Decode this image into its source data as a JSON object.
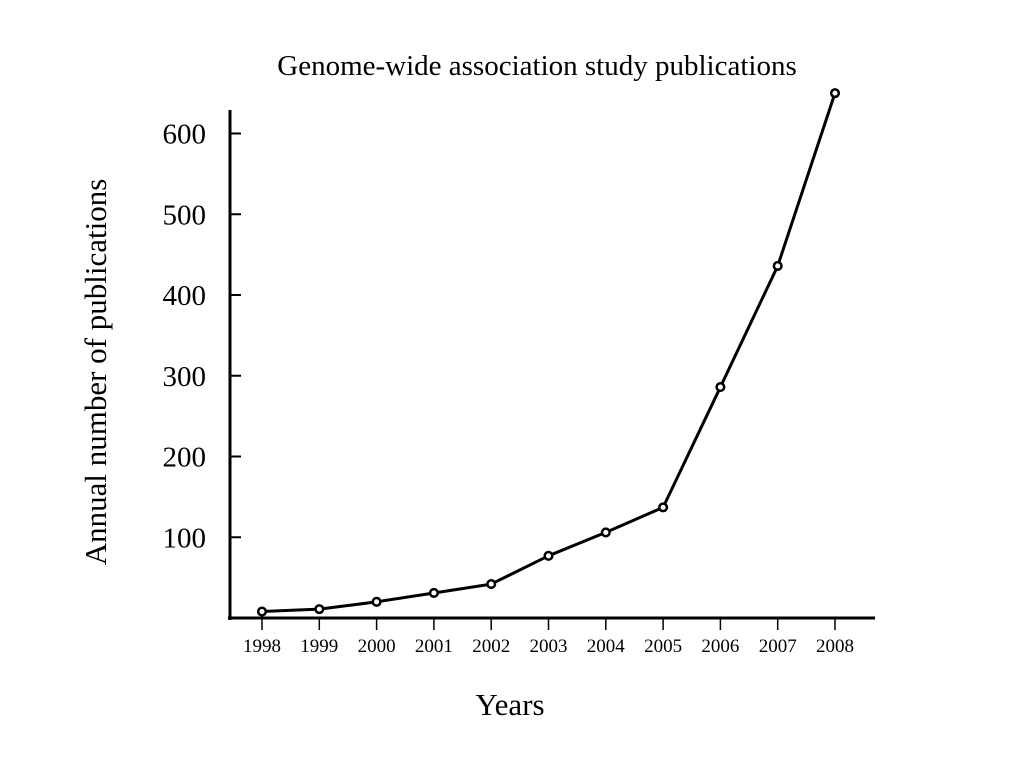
{
  "chart_data": {
    "type": "line",
    "title": "Genome-wide association study publications",
    "xlabel": "Years",
    "ylabel": "Annual number of publications",
    "x": [
      "1998",
      "1999",
      "2000",
      "2001",
      "2002",
      "2003",
      "2004",
      "2005",
      "2006",
      "2007",
      "2008"
    ],
    "series": [
      {
        "values": [
          8,
          11,
          20,
          31,
          42,
          77,
          106,
          137,
          286,
          436,
          650
        ]
      }
    ],
    "ylim": [
      0,
      650
    ],
    "yticks": [
      100,
      200,
      300,
      400,
      500,
      600
    ],
    "grid": false,
    "marker": "open-circle",
    "colors": {
      "line": "#000000",
      "background": "#ffffff"
    }
  }
}
